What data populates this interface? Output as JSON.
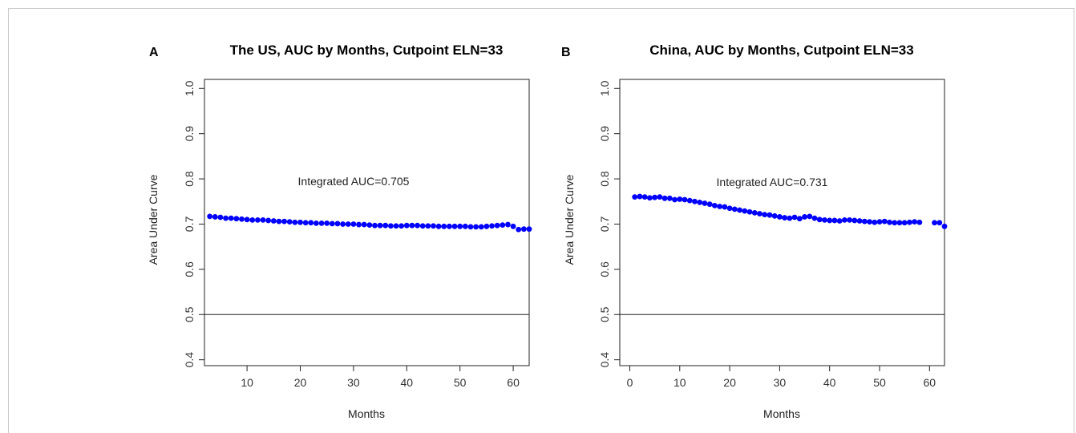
{
  "chart_data": [
    {
      "type": "scatter",
      "panel_label": "A",
      "title": "The US, AUC by Months, Cutpoint ELN=33",
      "xlabel": "Months",
      "ylabel": "Area Under Curve",
      "xlim": [
        2,
        63
      ],
      "ylim": [
        0.4,
        1.0
      ],
      "xticks": [
        10,
        20,
        30,
        40,
        50,
        60
      ],
      "yticks": [
        0.4,
        0.5,
        0.6,
        0.7,
        0.8,
        0.9,
        1.0
      ],
      "reference_line_y": 0.5,
      "annotation": "Integrated AUC=0.705",
      "point_color": "#0000ff",
      "series": [
        {
          "x": [
            3,
            4,
            5,
            6,
            7,
            8,
            9,
            10,
            11,
            12,
            13,
            14,
            15,
            16,
            17,
            18,
            19,
            20,
            21,
            22,
            23,
            24,
            25,
            26,
            27,
            28,
            29,
            30,
            31,
            32,
            33,
            34,
            35,
            36,
            37,
            38,
            39,
            40,
            41,
            42,
            43,
            44,
            45,
            46,
            47,
            48,
            49,
            50,
            51,
            52,
            53,
            54,
            55,
            56,
            57,
            58,
            59,
            60,
            61,
            62,
            63
          ],
          "values": [
            0.717,
            0.716,
            0.715,
            0.713,
            0.713,
            0.712,
            0.711,
            0.71,
            0.709,
            0.709,
            0.709,
            0.708,
            0.707,
            0.706,
            0.706,
            0.705,
            0.704,
            0.704,
            0.703,
            0.703,
            0.702,
            0.702,
            0.702,
            0.701,
            0.701,
            0.7,
            0.7,
            0.7,
            0.699,
            0.699,
            0.698,
            0.697,
            0.697,
            0.697,
            0.696,
            0.696,
            0.696,
            0.697,
            0.697,
            0.697,
            0.696,
            0.696,
            0.696,
            0.695,
            0.695,
            0.695,
            0.695,
            0.695,
            0.695,
            0.694,
            0.694,
            0.694,
            0.695,
            0.696,
            0.697,
            0.698,
            0.699,
            0.695,
            0.688,
            0.689,
            0.689
          ]
        }
      ]
    },
    {
      "type": "scatter",
      "panel_label": "B",
      "title": "China, AUC by Months, Cutpoint ELN=33",
      "xlabel": "Months",
      "ylabel": "Area Under Curve",
      "xlim": [
        -2,
        63
      ],
      "ylim": [
        0.4,
        1.0
      ],
      "xticks": [
        0,
        10,
        20,
        30,
        40,
        50,
        60
      ],
      "yticks": [
        0.4,
        0.5,
        0.6,
        0.7,
        0.8,
        0.9,
        1.0
      ],
      "reference_line_y": 0.5,
      "annotation": "Integrated AUC=0.731",
      "point_color": "#0000ff",
      "series": [
        {
          "x": [
            1,
            2,
            3,
            4,
            5,
            6,
            7,
            8,
            9,
            10,
            11,
            12,
            13,
            14,
            15,
            16,
            17,
            18,
            19,
            20,
            21,
            22,
            23,
            24,
            25,
            26,
            27,
            28,
            29,
            30,
            31,
            32,
            33,
            34,
            35,
            36,
            37,
            38,
            39,
            40,
            41,
            42,
            43,
            44,
            45,
            46,
            47,
            48,
            49,
            50,
            51,
            52,
            53,
            54,
            55,
            56,
            57,
            58,
            61,
            62,
            63
          ],
          "values": [
            0.76,
            0.761,
            0.76,
            0.758,
            0.759,
            0.76,
            0.757,
            0.757,
            0.754,
            0.755,
            0.754,
            0.752,
            0.75,
            0.748,
            0.746,
            0.744,
            0.741,
            0.739,
            0.738,
            0.735,
            0.733,
            0.731,
            0.729,
            0.727,
            0.725,
            0.723,
            0.721,
            0.72,
            0.718,
            0.716,
            0.714,
            0.713,
            0.715,
            0.712,
            0.716,
            0.717,
            0.713,
            0.71,
            0.709,
            0.708,
            0.708,
            0.707,
            0.709,
            0.709,
            0.708,
            0.707,
            0.706,
            0.705,
            0.704,
            0.705,
            0.706,
            0.704,
            0.703,
            0.703,
            0.703,
            0.704,
            0.705,
            0.704,
            0.703,
            0.703,
            0.695
          ]
        }
      ]
    }
  ]
}
